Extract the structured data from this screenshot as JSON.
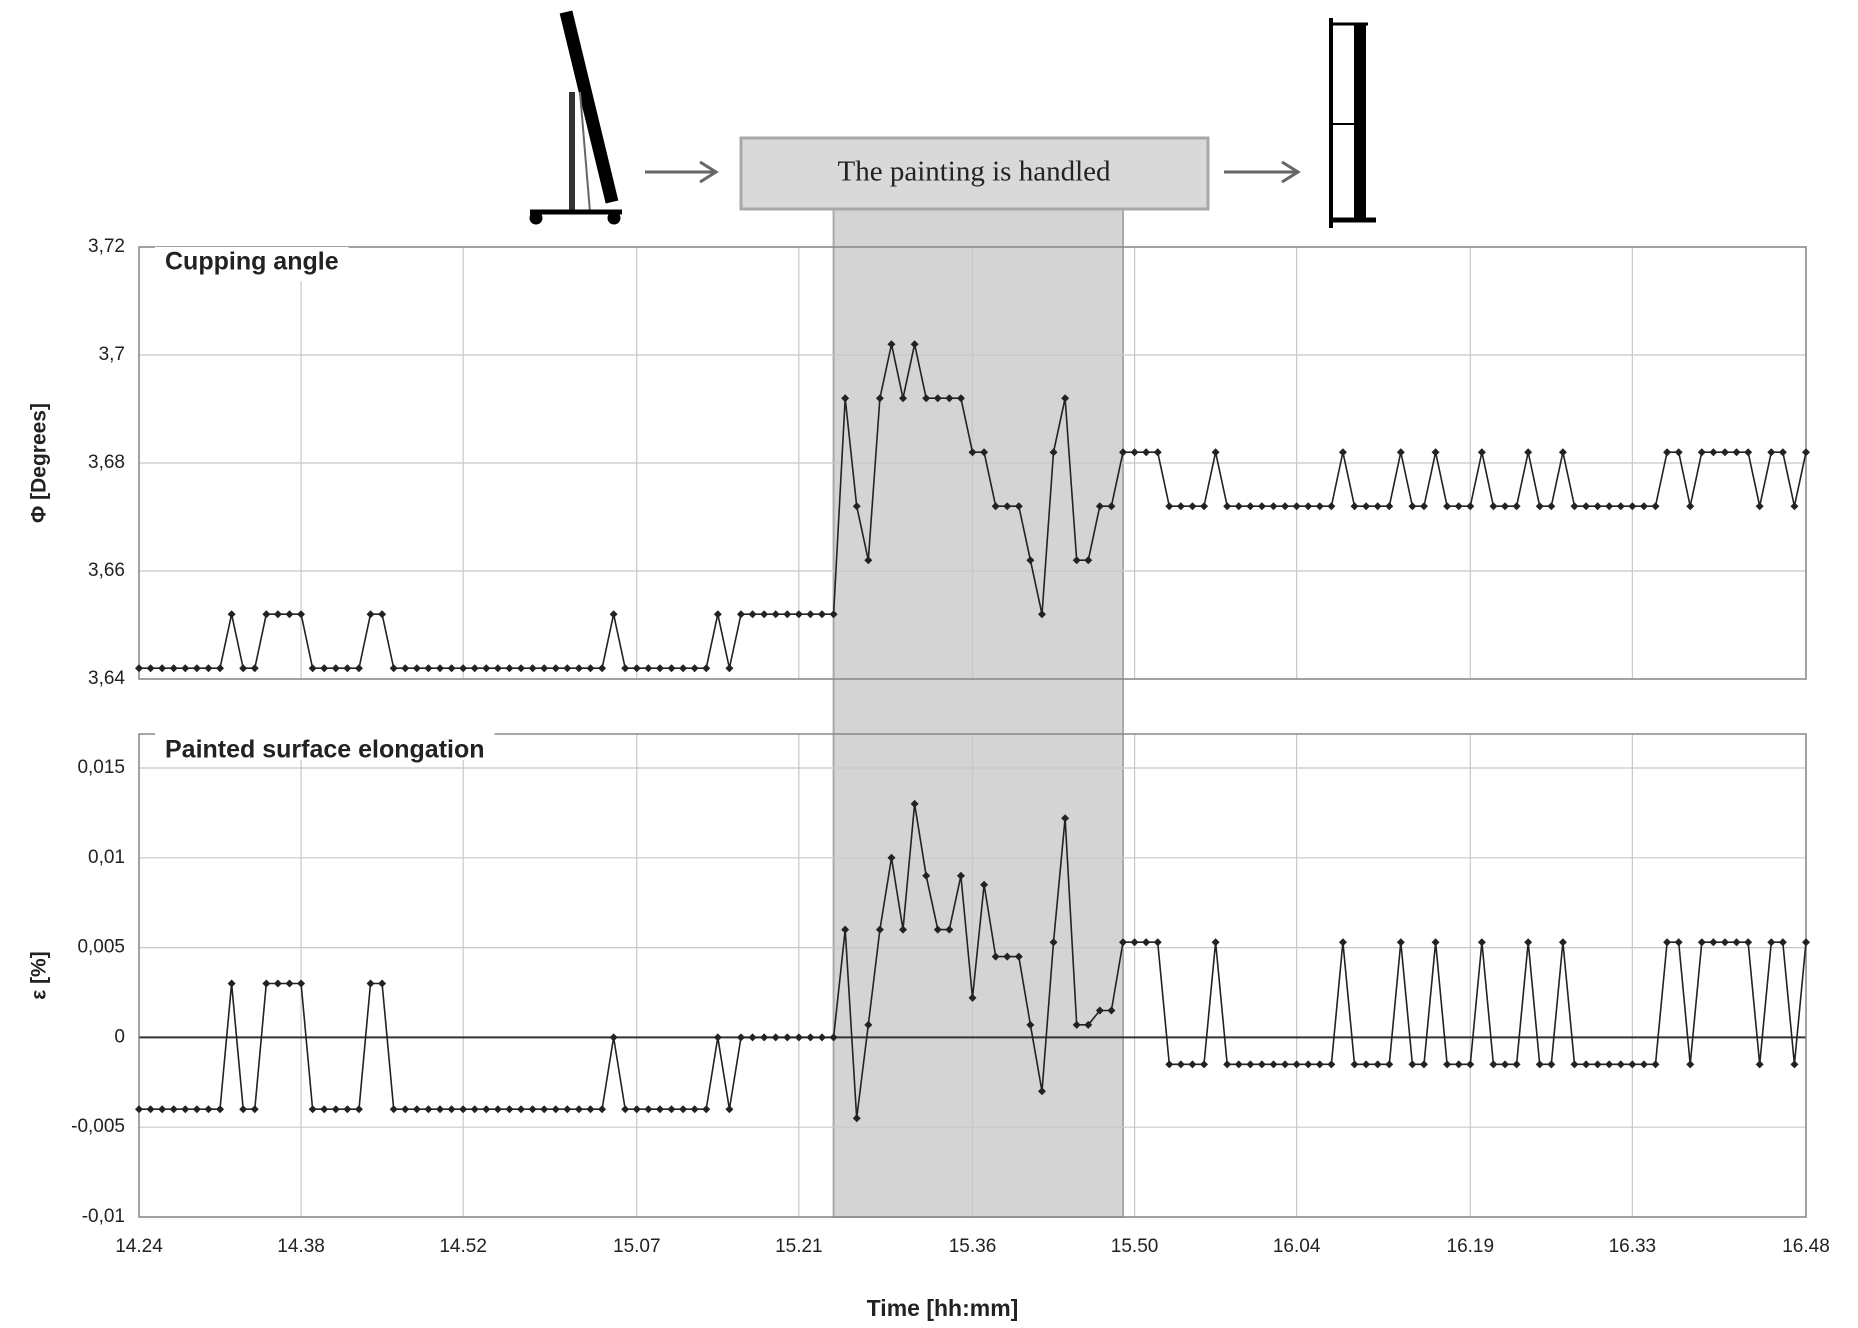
{
  "annotation": {
    "text": "The painting is handled",
    "xrange": [
      924,
      949
    ]
  },
  "chart_data": [
    {
      "type": "line",
      "title": "Cupping angle",
      "y_label": "Φ [Degrees]",
      "color": "#222222",
      "xlim": [
        864,
        1008
      ],
      "ylim": [
        3.64,
        3.72
      ],
      "yticks": [
        {
          "value": 3.64,
          "label": "3,64"
        },
        {
          "value": 3.66,
          "label": "3,66"
        },
        {
          "value": 3.68,
          "label": "3,68"
        },
        {
          "value": 3.7,
          "label": "3,7"
        },
        {
          "value": 3.72,
          "label": "3,72"
        }
      ],
      "grid": true,
      "x": [
        864,
        865,
        866,
        867,
        868,
        869,
        870,
        871,
        872,
        873,
        874,
        875,
        876,
        877,
        878,
        879,
        880,
        881,
        882,
        883,
        884,
        885,
        886,
        887,
        888,
        889,
        890,
        891,
        892,
        893,
        894,
        895,
        896,
        897,
        898,
        899,
        900,
        901,
        902,
        903,
        904,
        905,
        906,
        907,
        908,
        909,
        910,
        911,
        912,
        913,
        914,
        915,
        916,
        917,
        918,
        919,
        920,
        921,
        922,
        923,
        924,
        925,
        926,
        927,
        928,
        929,
        930,
        931,
        932,
        933,
        934,
        935,
        936,
        937,
        938,
        939,
        940,
        941,
        942,
        943,
        944,
        945,
        946,
        947,
        948,
        949,
        950,
        951,
        952,
        953,
        954,
        955,
        956,
        957,
        958,
        959,
        960,
        961,
        962,
        963,
        964,
        965,
        966,
        967,
        968,
        969,
        970,
        971,
        972,
        973,
        974,
        975,
        976,
        977,
        978,
        979,
        980,
        981,
        982,
        983,
        984,
        985,
        986,
        987,
        988,
        989,
        990,
        991,
        992,
        993,
        994,
        995,
        996,
        997,
        998,
        999,
        1000,
        1001,
        1002,
        1003,
        1004,
        1005,
        1006,
        1007,
        1008
      ],
      "values": [
        3.642,
        3.642,
        3.642,
        3.642,
        3.642,
        3.642,
        3.642,
        3.642,
        3.652,
        3.642,
        3.642,
        3.652,
        3.652,
        3.652,
        3.652,
        3.642,
        3.642,
        3.642,
        3.642,
        3.642,
        3.652,
        3.652,
        3.642,
        3.642,
        3.642,
        3.642,
        3.642,
        3.642,
        3.642,
        3.642,
        3.642,
        3.642,
        3.642,
        3.642,
        3.642,
        3.642,
        3.642,
        3.642,
        3.642,
        3.642,
        3.642,
        3.652,
        3.642,
        3.642,
        3.642,
        3.642,
        3.642,
        3.642,
        3.642,
        3.642,
        3.652,
        3.642,
        3.652,
        3.652,
        3.652,
        3.652,
        3.652,
        3.652,
        3.652,
        3.652,
        3.652,
        3.692,
        3.672,
        3.662,
        3.692,
        3.702,
        3.692,
        3.702,
        3.692,
        3.692,
        3.692,
        3.692,
        3.682,
        3.682,
        3.672,
        3.672,
        3.672,
        3.662,
        3.652,
        3.682,
        3.692,
        3.662,
        3.662,
        3.672,
        3.672,
        3.682,
        3.682,
        3.682,
        3.682,
        3.672,
        3.672,
        3.672,
        3.672,
        3.682,
        3.672,
        3.672,
        3.672,
        3.672,
        3.672,
        3.672,
        3.672,
        3.672,
        3.672,
        3.672,
        3.682,
        3.672,
        3.672,
        3.672,
        3.672,
        3.682,
        3.672,
        3.672,
        3.682,
        3.672,
        3.672,
        3.672,
        3.682,
        3.672,
        3.672,
        3.672,
        3.682,
        3.672,
        3.672,
        3.682,
        3.672,
        3.672,
        3.672,
        3.672,
        3.672,
        3.672,
        3.672,
        3.672,
        3.682,
        3.682,
        3.672,
        3.682,
        3.682,
        3.682,
        3.682,
        3.682,
        3.672,
        3.682,
        3.682,
        3.672,
        3.682
      ]
    },
    {
      "type": "line",
      "title": "Painted surface elongation",
      "y_label": "ε [%]",
      "x_label": "Time [hh:mm]",
      "color": "#222222",
      "xlim": [
        864,
        1008
      ],
      "ylim": [
        -0.01,
        0.015
      ],
      "yticks": [
        {
          "value": -0.01,
          "label": "-0,01"
        },
        {
          "value": -0.005,
          "label": "-0,005"
        },
        0,
        {
          "value": 0.005,
          "label": "0,005"
        },
        {
          "value": 0.01,
          "label": "0,01"
        },
        {
          "value": 0.015,
          "label": "0,015"
        }
      ],
      "xticks": [
        {
          "value": 864,
          "label": "14.24"
        },
        {
          "value": 878,
          "label": "14.38"
        },
        {
          "value": 892,
          "label": "14.52"
        },
        {
          "value": 907,
          "label": "15.07"
        },
        {
          "value": 921,
          "label": "15.21"
        },
        {
          "value": 936,
          "label": "15.36"
        },
        {
          "value": 950,
          "label": "15.50"
        },
        {
          "value": 964,
          "label": "16.04"
        },
        {
          "value": 979,
          "label": "16.19"
        },
        {
          "value": 993,
          "label": "16.33"
        },
        {
          "value": 1008,
          "label": "16.48"
        }
      ],
      "grid": true,
      "x": [
        864,
        865,
        866,
        867,
        868,
        869,
        870,
        871,
        872,
        873,
        874,
        875,
        876,
        877,
        878,
        879,
        880,
        881,
        882,
        883,
        884,
        885,
        886,
        887,
        888,
        889,
        890,
        891,
        892,
        893,
        894,
        895,
        896,
        897,
        898,
        899,
        900,
        901,
        902,
        903,
        904,
        905,
        906,
        907,
        908,
        909,
        910,
        911,
        912,
        913,
        914,
        915,
        916,
        917,
        918,
        919,
        920,
        921,
        922,
        923,
        924,
        925,
        926,
        927,
        928,
        929,
        930,
        931,
        932,
        933,
        934,
        935,
        936,
        937,
        938,
        939,
        940,
        941,
        942,
        943,
        944,
        945,
        946,
        947,
        948,
        949,
        950,
        951,
        952,
        953,
        954,
        955,
        956,
        957,
        958,
        959,
        960,
        961,
        962,
        963,
        964,
        965,
        966,
        967,
        968,
        969,
        970,
        971,
        972,
        973,
        974,
        975,
        976,
        977,
        978,
        979,
        980,
        981,
        982,
        983,
        984,
        985,
        986,
        987,
        988,
        989,
        990,
        991,
        992,
        993,
        994,
        995,
        996,
        997,
        998,
        999,
        1000,
        1001,
        1002,
        1003,
        1004,
        1005,
        1006,
        1007,
        1008
      ],
      "values": [
        -0.004,
        -0.004,
        -0.004,
        -0.004,
        -0.004,
        -0.004,
        -0.004,
        -0.004,
        0.003,
        -0.004,
        -0.004,
        0.003,
        0.003,
        0.003,
        0.003,
        -0.004,
        -0.004,
        -0.004,
        -0.004,
        -0.004,
        0.003,
        0.003,
        -0.004,
        -0.004,
        -0.004,
        -0.004,
        -0.004,
        -0.004,
        -0.004,
        -0.004,
        -0.004,
        -0.004,
        -0.004,
        -0.004,
        -0.004,
        -0.004,
        -0.004,
        -0.004,
        -0.004,
        -0.004,
        -0.004,
        0,
        -0.004,
        -0.004,
        -0.004,
        -0.004,
        -0.004,
        -0.004,
        -0.004,
        -0.004,
        0,
        -0.004,
        0,
        0,
        0,
        0,
        0,
        0,
        0,
        0,
        0,
        0.006,
        -0.0045,
        0.0007,
        0.006,
        0.01,
        0.006,
        0.013,
        0.009,
        0.006,
        0.006,
        0.009,
        0.0022,
        0.0085,
        0.0045,
        0.0045,
        0.0045,
        0.0007,
        -0.003,
        0.0053,
        0.0122,
        0.0007,
        0.0007,
        0.0015,
        0.0015,
        0.0053,
        0.0053,
        0.0053,
        0.0053,
        -0.0015,
        -0.0015,
        -0.0015,
        -0.0015,
        0.0053,
        -0.0015,
        -0.0015,
        -0.0015,
        -0.0015,
        -0.0015,
        -0.0015,
        -0.0015,
        -0.0015,
        -0.0015,
        -0.0015,
        0.0053,
        -0.0015,
        -0.0015,
        -0.0015,
        -0.0015,
        0.0053,
        -0.0015,
        -0.0015,
        0.0053,
        -0.0015,
        -0.0015,
        -0.0015,
        0.0053,
        -0.0015,
        -0.0015,
        -0.0015,
        0.0053,
        -0.0015,
        -0.0015,
        0.0053,
        -0.0015,
        -0.0015,
        -0.0015,
        -0.0015,
        -0.0015,
        -0.0015,
        -0.0015,
        -0.0015,
        0.0053,
        0.0053,
        -0.0015,
        0.0053,
        0.0053,
        0.0053,
        0.0053,
        0.0053,
        -0.0015,
        0.0053,
        0.0053,
        -0.0015,
        0.0053
      ]
    }
  ]
}
